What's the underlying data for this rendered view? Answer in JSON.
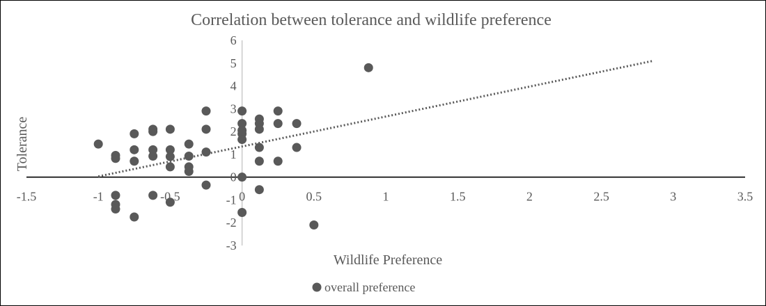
{
  "chart_data": {
    "type": "scatter",
    "title": "Correlation between tolerance and wildlife preference",
    "xlabel": "Wildlife Preference",
    "ylabel": "Tolerance",
    "xlim": [
      -1.5,
      3.5
    ],
    "ylim": [
      -3,
      6
    ],
    "x_ticks": [
      "-1.5",
      "-1",
      "-0.5",
      "0",
      "0.5",
      "1",
      "1.5",
      "2",
      "2.5",
      "3",
      "3.5"
    ],
    "y_ticks": [
      "-3",
      "-2",
      "-1",
      "0",
      "1",
      "2",
      "3",
      "4",
      "5",
      "6"
    ],
    "grid": false,
    "legend_position": "bottom",
    "series": [
      {
        "name": "overall preference",
        "color": "#595959",
        "marker": "circle",
        "points": [
          [
            -1.0,
            1.45
          ],
          [
            -0.88,
            0.95
          ],
          [
            -0.88,
            0.82
          ],
          [
            -0.88,
            -0.8
          ],
          [
            -0.88,
            -1.2
          ],
          [
            -0.88,
            -1.4
          ],
          [
            -0.75,
            1.9
          ],
          [
            -0.75,
            1.2
          ],
          [
            -0.75,
            0.7
          ],
          [
            -0.75,
            -1.75
          ],
          [
            -0.62,
            2.1
          ],
          [
            -0.62,
            2.0
          ],
          [
            -0.62,
            1.2
          ],
          [
            -0.62,
            0.92
          ],
          [
            -0.62,
            -0.8
          ],
          [
            -0.5,
            2.1
          ],
          [
            -0.5,
            1.2
          ],
          [
            -0.5,
            0.9
          ],
          [
            -0.5,
            0.45
          ],
          [
            -0.5,
            -1.1
          ],
          [
            -0.37,
            1.45
          ],
          [
            -0.37,
            0.92
          ],
          [
            -0.37,
            0.45
          ],
          [
            -0.37,
            0.25
          ],
          [
            -0.25,
            2.9
          ],
          [
            -0.25,
            2.1
          ],
          [
            -0.25,
            1.1
          ],
          [
            -0.25,
            -0.35
          ],
          [
            0.0,
            2.9
          ],
          [
            0.0,
            2.35
          ],
          [
            0.0,
            2.05
          ],
          [
            0.0,
            1.9
          ],
          [
            0.0,
            1.65
          ],
          [
            0.0,
            0.0
          ],
          [
            0.0,
            -1.55
          ],
          [
            0.12,
            2.55
          ],
          [
            0.12,
            2.35
          ],
          [
            0.12,
            2.1
          ],
          [
            0.12,
            1.3
          ],
          [
            0.12,
            0.7
          ],
          [
            0.12,
            -0.55
          ],
          [
            0.25,
            2.9
          ],
          [
            0.25,
            2.35
          ],
          [
            0.25,
            0.7
          ],
          [
            0.38,
            2.35
          ],
          [
            0.38,
            1.3
          ],
          [
            0.5,
            -2.1
          ],
          [
            0.88,
            4.8
          ]
        ]
      }
    ],
    "trendline": {
      "style": "dotted",
      "color": "#595959",
      "x_range": [
        -1.0,
        2.86
      ],
      "y_range": [
        0.03,
        5.1
      ]
    }
  }
}
